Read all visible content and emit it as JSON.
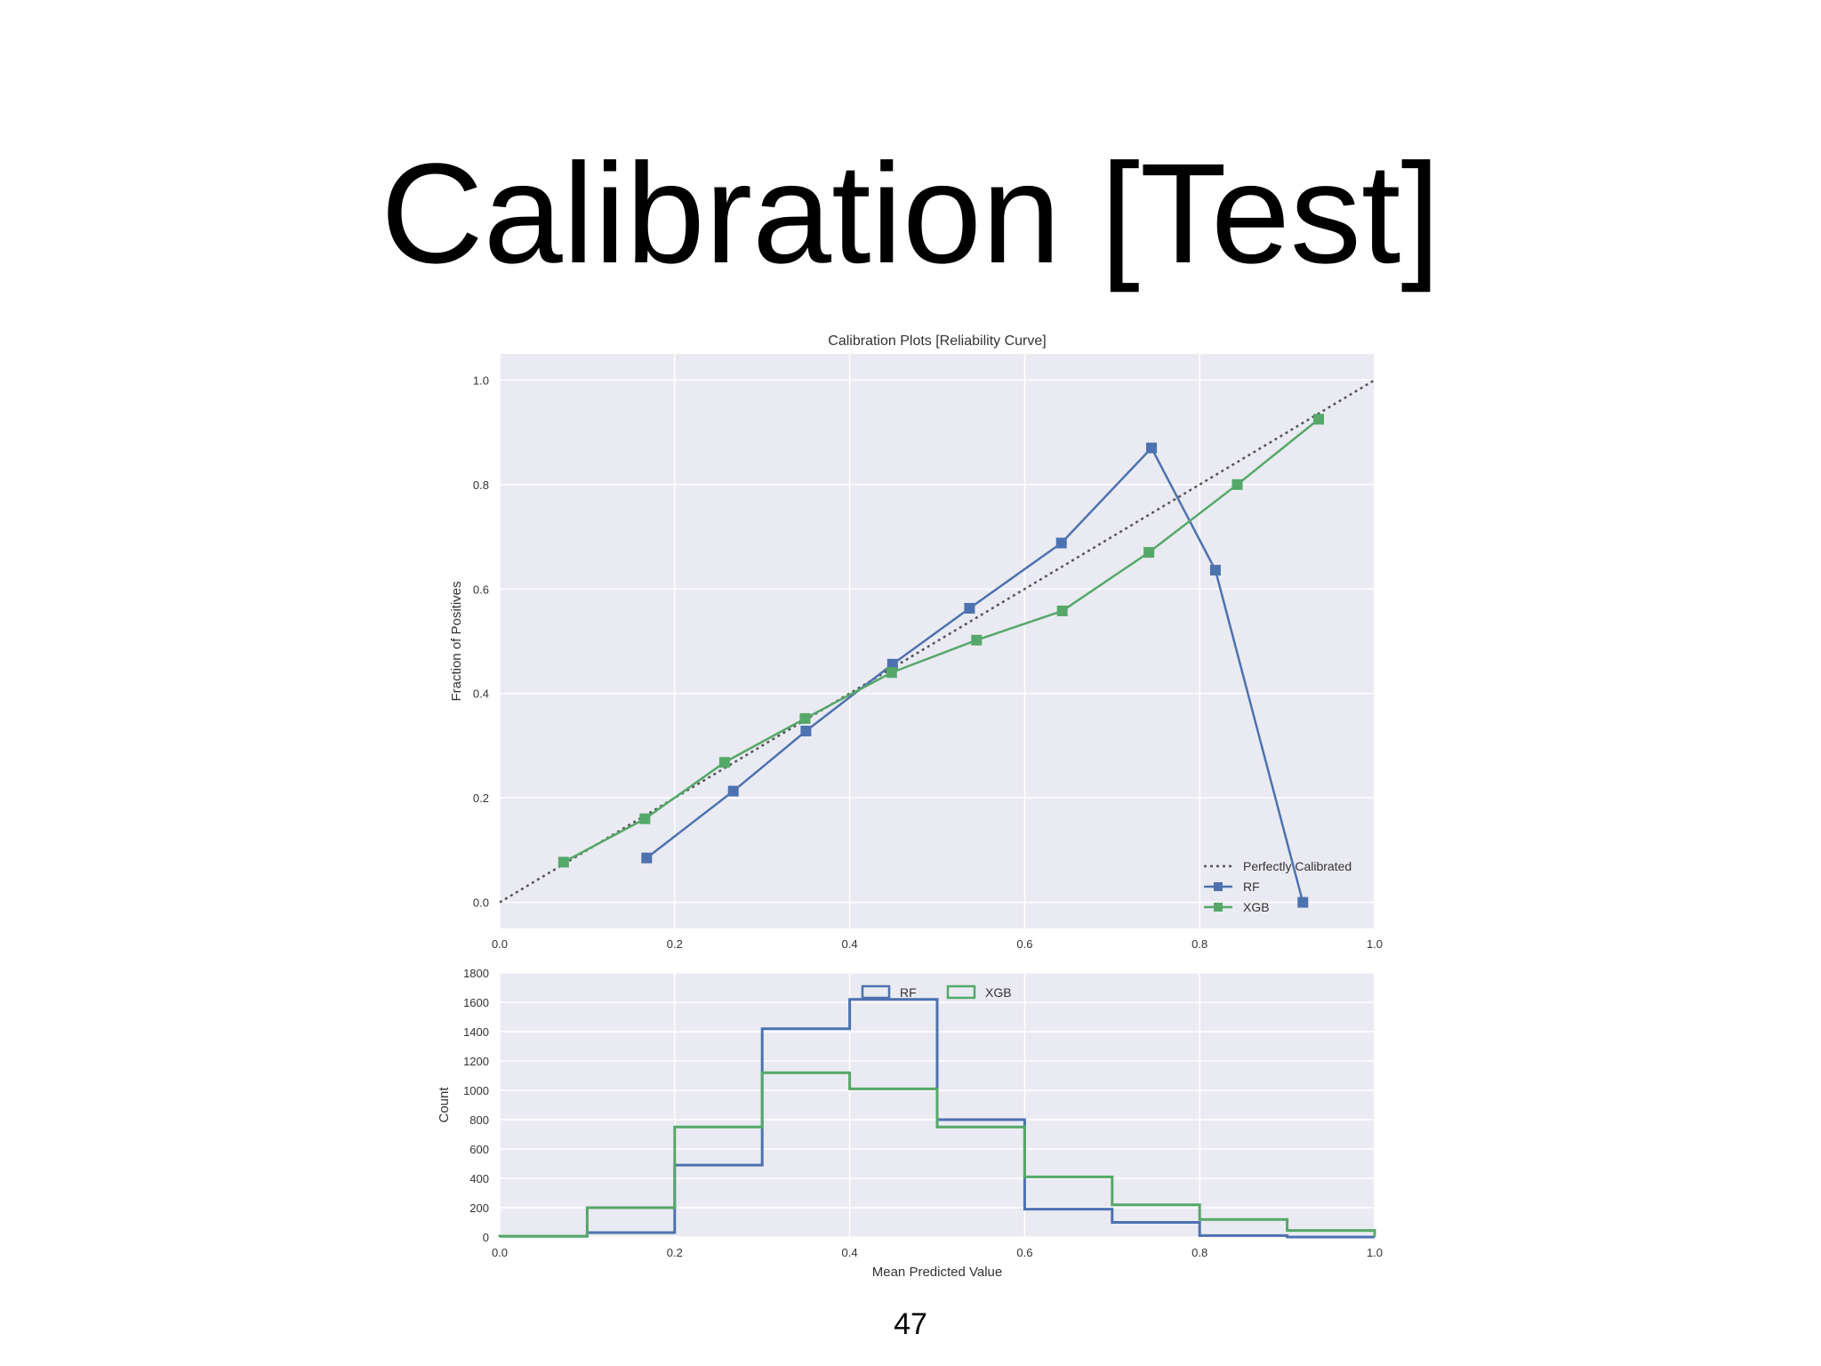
{
  "slide": {
    "title": "Calibration [Test]",
    "page_number": "47"
  },
  "colors": {
    "rf": "#4c72b0",
    "xgb": "#55a868",
    "diagonal": "#555555",
    "plot_background": "#eaeaf2",
    "grid": "#ffffff",
    "text": "#333333"
  },
  "chart_data": [
    {
      "type": "line",
      "title": "Calibration Plots [Reliability Curve]",
      "xlabel": "",
      "ylabel": "Fraction of Positives",
      "xlim": [
        0.0,
        1.0
      ],
      "ylim": [
        -0.05,
        1.05
      ],
      "x_ticks": [
        "0.0",
        "0.2",
        "0.4",
        "0.6",
        "0.8",
        "1.0"
      ],
      "y_ticks": [
        "0.0",
        "0.2",
        "0.4",
        "0.6",
        "0.8",
        "1.0"
      ],
      "grid": true,
      "legend_position": "lower-right",
      "series": [
        {
          "name": "Perfectly Calibrated",
          "style": "dotted",
          "x": [
            0.0,
            1.0
          ],
          "y": [
            0.0,
            1.0
          ]
        },
        {
          "name": "RF",
          "style": "line-square-markers",
          "x": [
            0.168,
            0.267,
            0.35,
            0.449,
            0.537,
            0.642,
            0.745,
            0.818,
            0.918
          ],
          "y": [
            0.085,
            0.213,
            0.328,
            0.456,
            0.563,
            0.688,
            0.87,
            0.636,
            0.0
          ]
        },
        {
          "name": "XGB",
          "style": "line-square-markers",
          "x": [
            0.073,
            0.166,
            0.257,
            0.349,
            0.448,
            0.545,
            0.643,
            0.742,
            0.843,
            0.936
          ],
          "y": [
            0.077,
            0.16,
            0.268,
            0.352,
            0.44,
            0.502,
            0.558,
            0.67,
            0.8,
            0.925
          ]
        }
      ]
    },
    {
      "type": "histogram",
      "title": "",
      "xlabel": "Mean Predicted Value",
      "ylabel": "Count",
      "xlim": [
        0.0,
        1.0
      ],
      "ylim": [
        0,
        1800
      ],
      "x_ticks": [
        "0.0",
        "0.2",
        "0.4",
        "0.6",
        "0.8",
        "1.0"
      ],
      "y_ticks": [
        "0",
        "200",
        "400",
        "600",
        "800",
        "1000",
        "1200",
        "1400",
        "1600",
        "1800"
      ],
      "grid": true,
      "legend_position": "top-center",
      "bin_edges": [
        0.0,
        0.1,
        0.2,
        0.3,
        0.4,
        0.5,
        0.6,
        0.7,
        0.8,
        0.9,
        1.0
      ],
      "series": [
        {
          "name": "RF",
          "style": "step",
          "counts": [
            5,
            30,
            490,
            1420,
            1620,
            800,
            190,
            100,
            10,
            0
          ]
        },
        {
          "name": "XGB",
          "style": "step",
          "counts": [
            5,
            200,
            750,
            1120,
            1010,
            750,
            410,
            220,
            120,
            45
          ]
        }
      ]
    }
  ]
}
